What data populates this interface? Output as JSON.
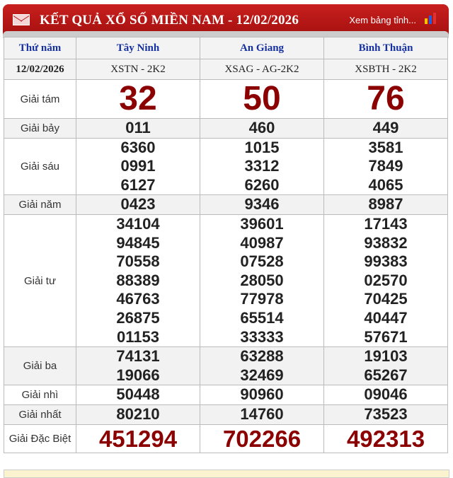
{
  "header": {
    "title": "KẾT QUẢ XỔ SỐ MIỀN NAM - 12/02/2026",
    "link": "Xem bảng tỉnh...",
    "bg_color": "#b5130f"
  },
  "table": {
    "day": "Thứ năm",
    "date": "12/02/2026",
    "provinces": [
      {
        "name": "Tây Ninh",
        "code": "XSTN - 2K2"
      },
      {
        "name": "An Giang",
        "code": "XSAG - AG-2K2"
      },
      {
        "name": "Bình Thuận",
        "code": "XSBTH - 2K2"
      }
    ],
    "prizes": [
      {
        "label": "Giải tám",
        "style": "big",
        "values": [
          [
            "32"
          ],
          [
            "50"
          ],
          [
            "76"
          ]
        ]
      },
      {
        "label": "Giải bảy",
        "values": [
          [
            "011"
          ],
          [
            "460"
          ],
          [
            "449"
          ]
        ]
      },
      {
        "label": "Giải sáu",
        "values": [
          [
            "6360",
            "0991",
            "6127"
          ],
          [
            "1015",
            "3312",
            "6260"
          ],
          [
            "3581",
            "7849",
            "4065"
          ]
        ]
      },
      {
        "label": "Giải năm",
        "values": [
          [
            "0423"
          ],
          [
            "9346"
          ],
          [
            "8987"
          ]
        ]
      },
      {
        "label": "Giải tư",
        "values": [
          [
            "34104",
            "94845",
            "70558",
            "88389",
            "46763",
            "26875",
            "01153"
          ],
          [
            "39601",
            "40987",
            "07528",
            "28050",
            "77978",
            "65514",
            "33333"
          ],
          [
            "17143",
            "93832",
            "99383",
            "02570",
            "70425",
            "40447",
            "57671"
          ]
        ]
      },
      {
        "label": "Giải ba",
        "values": [
          [
            "74131",
            "19066"
          ],
          [
            "63288",
            "32469"
          ],
          [
            "19103",
            "65267"
          ]
        ]
      },
      {
        "label": "Giải nhì",
        "values": [
          [
            "50448"
          ],
          [
            "90960"
          ],
          [
            "09046"
          ]
        ]
      },
      {
        "label": "Giải nhất",
        "values": [
          [
            "80210"
          ],
          [
            "14760"
          ],
          [
            "73523"
          ]
        ]
      },
      {
        "label": "Giải Đặc Biệt",
        "style": "special",
        "values": [
          [
            "451294"
          ],
          [
            "702266"
          ],
          [
            "492313"
          ]
        ]
      }
    ]
  }
}
